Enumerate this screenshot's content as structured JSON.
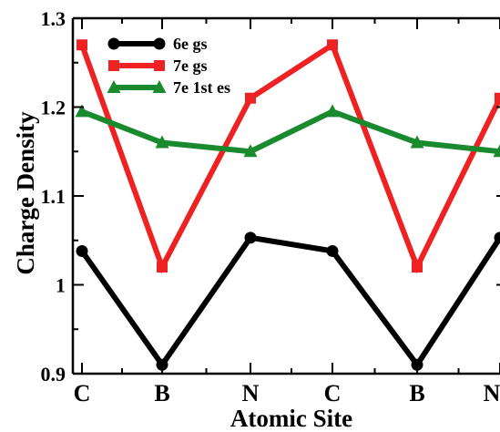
{
  "chart_data": {
    "type": "line",
    "categories": [
      "C",
      "B",
      "N",
      "C",
      "B",
      "N"
    ],
    "xlabel": "Atomic Site",
    "ylabel": "Charge Density",
    "ylim": [
      0.9,
      1.3
    ],
    "yticks": [
      "0.9",
      "1",
      "1.1",
      "1.2",
      "1.3"
    ],
    "yticks_values": [
      0.9,
      1.0,
      1.1,
      1.2,
      1.3
    ],
    "legend_position": "top-left",
    "grid": false,
    "series": [
      {
        "name": "6e gs",
        "values": [
          1.038,
          0.91,
          1.053,
          1.038,
          0.91,
          1.053
        ],
        "color": "#000000",
        "marker": "circle"
      },
      {
        "name": "7e gs",
        "values": [
          1.27,
          1.02,
          1.21,
          1.27,
          1.02,
          1.21
        ],
        "color": "#ee2222",
        "marker": "square"
      },
      {
        "name": "7e 1st es",
        "values": [
          1.195,
          1.16,
          1.15,
          1.195,
          1.16,
          1.15
        ],
        "color": "#1a8a2e",
        "marker": "triangle"
      }
    ]
  }
}
